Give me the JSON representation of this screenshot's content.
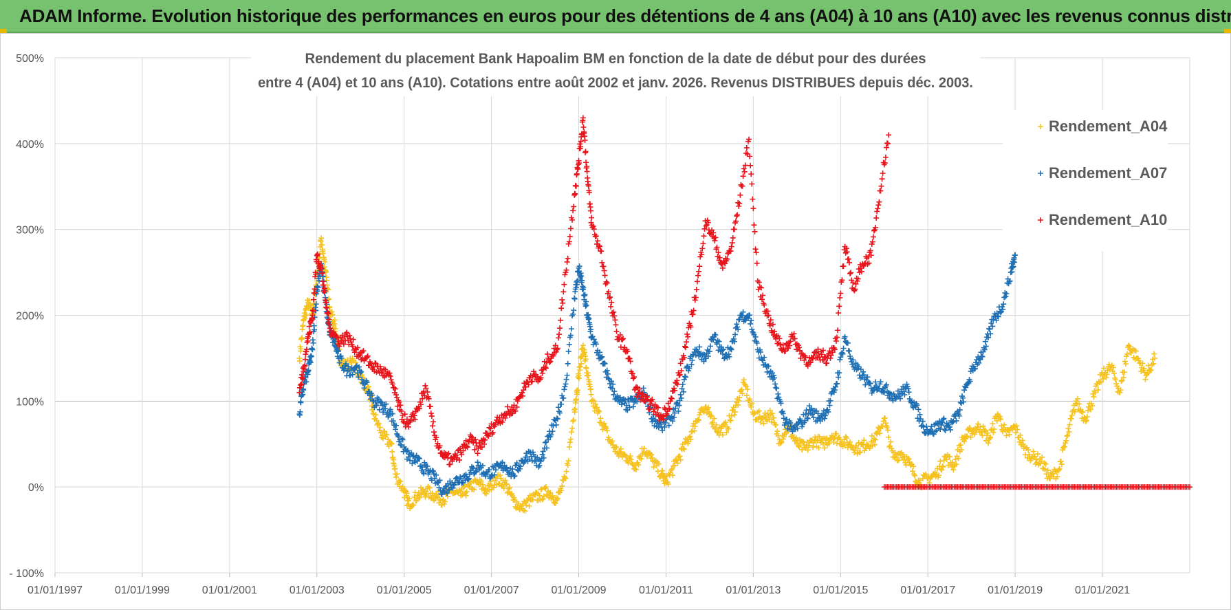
{
  "header": {
    "title": "ADAM Informe. Evolution historique des performances en euros pour des détentions de 4 ans (A04) à 10 ans (A10) avec les revenus connus distribués"
  },
  "colors": {
    "header_bg": "#77c26f",
    "A04": "#f5c220",
    "A07": "#1f6fb4",
    "A10": "#e8141c",
    "grid": "#d9d9d9"
  },
  "chart_data": {
    "type": "scatter",
    "title_line1": "Rendement du placement Bank Hapoalim BM en fonction de la date de début pour des durées",
    "title_line2": "entre 4 (A04) et 10 ans (A10).  Cotations entre août 2002  et janv. 2026.  Revenus DISTRIBUES depuis déc. 2003.",
    "x_range": [
      1997.0,
      2023.0
    ],
    "y_range": [
      -100,
      500
    ],
    "y_ticks": [
      -100,
      0,
      100,
      200,
      300,
      400,
      500
    ],
    "y_tick_labels": [
      "- 100%",
      "0%",
      "100%",
      "200%",
      "300%",
      "400%",
      "500%"
    ],
    "x_ticks": [
      1997,
      1999,
      2001,
      2003,
      2005,
      2007,
      2009,
      2011,
      2013,
      2015,
      2017,
      2019,
      2021
    ],
    "x_tick_labels": [
      "01/01/1997",
      "01/01/1999",
      "01/01/2001",
      "01/01/2003",
      "01/01/2005",
      "01/01/2007",
      "01/01/2009",
      "01/01/2011",
      "01/01/2013",
      "01/01/2015",
      "01/01/2017",
      "01/01/2019",
      "01/01/2021"
    ],
    "legend": {
      "position": "top-right",
      "entries": [
        "Rendement_A04",
        "Rendement_A07",
        "Rendement_A10"
      ]
    },
    "marker": "+",
    "series": [
      {
        "name": "Rendement_A04",
        "color": "#f5c220",
        "points": [
          [
            2002.6,
            150
          ],
          [
            2002.7,
            195
          ],
          [
            2002.8,
            215
          ],
          [
            2002.9,
            200
          ],
          [
            2003.0,
            240
          ],
          [
            2003.1,
            290
          ],
          [
            2003.2,
            250
          ],
          [
            2003.3,
            205
          ],
          [
            2003.4,
            190
          ],
          [
            2003.5,
            160
          ],
          [
            2003.6,
            140
          ],
          [
            2003.8,
            145
          ],
          [
            2004.0,
            130
          ],
          [
            2004.2,
            110
          ],
          [
            2004.3,
            85
          ],
          [
            2004.5,
            60
          ],
          [
            2004.7,
            50
          ],
          [
            2004.8,
            15
          ],
          [
            2005.0,
            -5
          ],
          [
            2005.1,
            -20
          ],
          [
            2005.3,
            -10
          ],
          [
            2005.5,
            -5
          ],
          [
            2005.7,
            -10
          ],
          [
            2005.9,
            -15
          ],
          [
            2006.1,
            -5
          ],
          [
            2006.3,
            -10
          ],
          [
            2006.5,
            0
          ],
          [
            2006.7,
            5
          ],
          [
            2006.9,
            -5
          ],
          [
            2007.1,
            10
          ],
          [
            2007.3,
            5
          ],
          [
            2007.5,
            -15
          ],
          [
            2007.7,
            -25
          ],
          [
            2007.9,
            -15
          ],
          [
            2008.1,
            -10
          ],
          [
            2008.3,
            -5
          ],
          [
            2008.5,
            -15
          ],
          [
            2008.7,
            10
          ],
          [
            2008.9,
            90
          ],
          [
            2009.0,
            130
          ],
          [
            2009.1,
            165
          ],
          [
            2009.2,
            130
          ],
          [
            2009.3,
            100
          ],
          [
            2009.5,
            80
          ],
          [
            2009.7,
            55
          ],
          [
            2009.9,
            40
          ],
          [
            2010.1,
            35
          ],
          [
            2010.3,
            25
          ],
          [
            2010.5,
            45
          ],
          [
            2010.7,
            30
          ],
          [
            2010.9,
            15
          ],
          [
            2011.0,
            5
          ],
          [
            2011.2,
            25
          ],
          [
            2011.4,
            45
          ],
          [
            2011.6,
            65
          ],
          [
            2011.8,
            90
          ],
          [
            2012.0,
            85
          ],
          [
            2012.2,
            65
          ],
          [
            2012.4,
            70
          ],
          [
            2012.6,
            95
          ],
          [
            2012.8,
            120
          ],
          [
            2013.0,
            85
          ],
          [
            2013.2,
            80
          ],
          [
            2013.4,
            85
          ],
          [
            2013.6,
            55
          ],
          [
            2013.8,
            70
          ],
          [
            2014.0,
            50
          ],
          [
            2014.2,
            45
          ],
          [
            2014.4,
            55
          ],
          [
            2014.6,
            50
          ],
          [
            2014.8,
            60
          ],
          [
            2015.0,
            55
          ],
          [
            2015.2,
            50
          ],
          [
            2015.4,
            45
          ],
          [
            2015.6,
            50
          ],
          [
            2015.8,
            55
          ],
          [
            2016.0,
            80
          ],
          [
            2016.2,
            35
          ],
          [
            2016.4,
            40
          ],
          [
            2016.6,
            25
          ],
          [
            2016.8,
            5
          ],
          [
            2017.0,
            10
          ],
          [
            2017.2,
            15
          ],
          [
            2017.4,
            35
          ],
          [
            2017.6,
            25
          ],
          [
            2017.8,
            55
          ],
          [
            2018.0,
            65
          ],
          [
            2018.2,
            70
          ],
          [
            2018.4,
            55
          ],
          [
            2018.6,
            85
          ],
          [
            2018.8,
            60
          ],
          [
            2019.0,
            70
          ],
          [
            2019.2,
            45
          ],
          [
            2019.4,
            35
          ],
          [
            2019.6,
            30
          ],
          [
            2019.8,
            10
          ],
          [
            2020.0,
            20
          ],
          [
            2020.2,
            60
          ],
          [
            2020.4,
            100
          ],
          [
            2020.6,
            80
          ],
          [
            2020.8,
            105
          ],
          [
            2021.0,
            130
          ],
          [
            2021.2,
            140
          ],
          [
            2021.4,
            110
          ],
          [
            2021.6,
            165
          ],
          [
            2021.8,
            150
          ],
          [
            2022.0,
            130
          ],
          [
            2022.2,
            150
          ]
        ]
      },
      {
        "name": "Rendement_A07",
        "color": "#1f6fb4",
        "points": [
          [
            2002.6,
            85
          ],
          [
            2002.7,
            120
          ],
          [
            2002.8,
            135
          ],
          [
            2002.9,
            160
          ],
          [
            2003.0,
            230
          ],
          [
            2003.1,
            260
          ],
          [
            2003.2,
            215
          ],
          [
            2003.3,
            180
          ],
          [
            2003.4,
            170
          ],
          [
            2003.5,
            150
          ],
          [
            2003.7,
            135
          ],
          [
            2003.9,
            140
          ],
          [
            2004.1,
            120
          ],
          [
            2004.3,
            100
          ],
          [
            2004.5,
            95
          ],
          [
            2004.7,
            85
          ],
          [
            2004.9,
            55
          ],
          [
            2005.1,
            35
          ],
          [
            2005.3,
            30
          ],
          [
            2005.5,
            20
          ],
          [
            2005.7,
            10
          ],
          [
            2005.9,
            -5
          ],
          [
            2006.1,
            5
          ],
          [
            2006.3,
            10
          ],
          [
            2006.5,
            15
          ],
          [
            2006.7,
            25
          ],
          [
            2006.9,
            15
          ],
          [
            2007.1,
            20
          ],
          [
            2007.3,
            25
          ],
          [
            2007.5,
            15
          ],
          [
            2007.7,
            30
          ],
          [
            2007.9,
            40
          ],
          [
            2008.1,
            25
          ],
          [
            2008.3,
            55
          ],
          [
            2008.5,
            80
          ],
          [
            2008.7,
            120
          ],
          [
            2008.9,
            220
          ],
          [
            2009.0,
            255
          ],
          [
            2009.1,
            230
          ],
          [
            2009.2,
            200
          ],
          [
            2009.3,
            175
          ],
          [
            2009.5,
            150
          ],
          [
            2009.7,
            125
          ],
          [
            2009.9,
            100
          ],
          [
            2010.1,
            95
          ],
          [
            2010.3,
            100
          ],
          [
            2010.5,
            110
          ],
          [
            2010.7,
            80
          ],
          [
            2010.9,
            70
          ],
          [
            2011.1,
            80
          ],
          [
            2011.3,
            95
          ],
          [
            2011.5,
            140
          ],
          [
            2011.7,
            160
          ],
          [
            2011.9,
            150
          ],
          [
            2012.1,
            175
          ],
          [
            2012.3,
            155
          ],
          [
            2012.5,
            160
          ],
          [
            2012.7,
            200
          ],
          [
            2012.9,
            200
          ],
          [
            2013.1,
            160
          ],
          [
            2013.3,
            140
          ],
          [
            2013.5,
            120
          ],
          [
            2013.7,
            80
          ],
          [
            2013.9,
            65
          ],
          [
            2014.1,
            75
          ],
          [
            2014.3,
            90
          ],
          [
            2014.5,
            80
          ],
          [
            2014.7,
            90
          ],
          [
            2014.9,
            120
          ],
          [
            2015.1,
            175
          ],
          [
            2015.3,
            140
          ],
          [
            2015.5,
            130
          ],
          [
            2015.7,
            115
          ],
          [
            2015.9,
            120
          ],
          [
            2016.1,
            110
          ],
          [
            2016.3,
            105
          ],
          [
            2016.5,
            115
          ],
          [
            2016.7,
            95
          ],
          [
            2016.9,
            70
          ],
          [
            2017.1,
            65
          ],
          [
            2017.3,
            75
          ],
          [
            2017.5,
            70
          ],
          [
            2017.7,
            85
          ],
          [
            2017.9,
            120
          ],
          [
            2018.1,
            145
          ],
          [
            2018.3,
            160
          ],
          [
            2018.5,
            195
          ],
          [
            2018.7,
            210
          ],
          [
            2018.9,
            250
          ],
          [
            2019.0,
            270
          ]
        ]
      },
      {
        "name": "Rendement_A10",
        "color": "#e8141c",
        "points": [
          [
            2002.6,
            110
          ],
          [
            2002.7,
            140
          ],
          [
            2002.8,
            175
          ],
          [
            2002.9,
            200
          ],
          [
            2003.0,
            270
          ],
          [
            2003.1,
            255
          ],
          [
            2003.2,
            215
          ],
          [
            2003.3,
            185
          ],
          [
            2003.5,
            170
          ],
          [
            2003.7,
            175
          ],
          [
            2003.9,
            160
          ],
          [
            2004.1,
            150
          ],
          [
            2004.3,
            140
          ],
          [
            2004.5,
            135
          ],
          [
            2004.7,
            125
          ],
          [
            2004.9,
            90
          ],
          [
            2005.1,
            70
          ],
          [
            2005.3,
            90
          ],
          [
            2005.5,
            115
          ],
          [
            2005.7,
            60
          ],
          [
            2005.9,
            35
          ],
          [
            2006.1,
            30
          ],
          [
            2006.3,
            40
          ],
          [
            2006.5,
            55
          ],
          [
            2006.7,
            45
          ],
          [
            2006.9,
            60
          ],
          [
            2007.1,
            75
          ],
          [
            2007.3,
            85
          ],
          [
            2007.5,
            90
          ],
          [
            2007.7,
            110
          ],
          [
            2007.9,
            130
          ],
          [
            2008.1,
            125
          ],
          [
            2008.3,
            150
          ],
          [
            2008.5,
            160
          ],
          [
            2008.7,
            250
          ],
          [
            2008.9,
            340
          ],
          [
            2009.0,
            380
          ],
          [
            2009.1,
            430
          ],
          [
            2009.2,
            360
          ],
          [
            2009.3,
            305
          ],
          [
            2009.5,
            275
          ],
          [
            2009.7,
            220
          ],
          [
            2009.9,
            175
          ],
          [
            2010.1,
            160
          ],
          [
            2010.3,
            115
          ],
          [
            2010.5,
            100
          ],
          [
            2010.7,
            95
          ],
          [
            2010.9,
            80
          ],
          [
            2011.1,
            100
          ],
          [
            2011.3,
            130
          ],
          [
            2011.5,
            175
          ],
          [
            2011.7,
            230
          ],
          [
            2011.9,
            310
          ],
          [
            2012.1,
            290
          ],
          [
            2012.3,
            255
          ],
          [
            2012.5,
            280
          ],
          [
            2012.7,
            340
          ],
          [
            2012.9,
            405
          ],
          [
            2013.1,
            240
          ],
          [
            2013.3,
            205
          ],
          [
            2013.5,
            175
          ],
          [
            2013.7,
            160
          ],
          [
            2013.9,
            175
          ],
          [
            2014.1,
            155
          ],
          [
            2014.3,
            145
          ],
          [
            2014.5,
            155
          ],
          [
            2014.7,
            150
          ],
          [
            2014.9,
            170
          ],
          [
            2015.1,
            280
          ],
          [
            2015.3,
            230
          ],
          [
            2015.5,
            260
          ],
          [
            2015.7,
            270
          ],
          [
            2015.9,
            345
          ],
          [
            2016.1,
            410
          ]
        ]
      },
      {
        "name": "Rendement_A10_flat",
        "legend": false,
        "color": "#e8141c",
        "points": [
          [
            2016.0,
            0
          ],
          [
            2016.5,
            0
          ],
          [
            2017.0,
            0
          ],
          [
            2017.5,
            0
          ],
          [
            2018.0,
            0
          ],
          [
            2018.5,
            0
          ],
          [
            2019.0,
            0
          ],
          [
            2019.5,
            0
          ],
          [
            2020.0,
            0
          ],
          [
            2020.5,
            0
          ],
          [
            2021.0,
            0
          ],
          [
            2021.5,
            0
          ],
          [
            2022.0,
            0
          ],
          [
            2022.5,
            0
          ],
          [
            2023.0,
            0
          ]
        ]
      }
    ]
  }
}
